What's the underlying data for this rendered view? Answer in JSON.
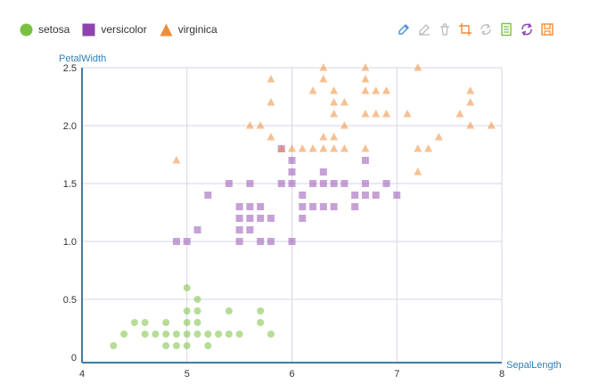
{
  "legend": {
    "items": [
      {
        "label": "setosa",
        "shape": "circle",
        "color": "#7ac143"
      },
      {
        "label": "versicolor",
        "shape": "square",
        "color": "#8e44ad"
      },
      {
        "label": "virginica",
        "shape": "triangle",
        "color": "#f08c38"
      }
    ]
  },
  "toolbox": {
    "items": [
      {
        "icon": "pencil-icon",
        "color": "#4a90d9"
      },
      {
        "icon": "eraser-icon",
        "color": "#bbbbbb"
      },
      {
        "icon": "clear-icon",
        "color": "#bbbbbb"
      },
      {
        "icon": "crop-icon",
        "color": "#f08c38"
      },
      {
        "icon": "refresh-disabled-icon",
        "color": "#bbbbbb"
      },
      {
        "icon": "data-view-icon",
        "color": "#7ac143"
      },
      {
        "icon": "restore-icon",
        "color": "#8e44ad"
      },
      {
        "icon": "save-image-icon",
        "color": "#f08c38"
      }
    ]
  },
  "chart_data": {
    "type": "scatter",
    "title": "",
    "xlabel": "SepalLength",
    "ylabel": "PetalWidth",
    "xlim": [
      4,
      8
    ],
    "ylim": [
      0,
      2.5
    ],
    "xticks": [
      4,
      5,
      6,
      7,
      8
    ],
    "yticks": [
      0,
      0.5,
      1.0,
      1.5,
      2.0,
      2.5
    ],
    "ytick_labels": [
      "0",
      "0.5",
      "1.0",
      "1.5",
      "2.0",
      "2.5"
    ],
    "grid": true,
    "legend_position": "top-left",
    "series": [
      {
        "name": "setosa",
        "color": "#7ac143",
        "symbol": "circle",
        "points": [
          [
            4.3,
            0.1
          ],
          [
            4.4,
            0.2
          ],
          [
            4.5,
            0.3
          ],
          [
            4.6,
            0.2
          ],
          [
            4.6,
            0.3
          ],
          [
            4.7,
            0.2
          ],
          [
            4.8,
            0.2
          ],
          [
            4.8,
            0.1
          ],
          [
            4.8,
            0.3
          ],
          [
            4.9,
            0.1
          ],
          [
            4.9,
            0.2
          ],
          [
            5.0,
            0.2
          ],
          [
            5.0,
            0.3
          ],
          [
            5.0,
            0.4
          ],
          [
            5.0,
            0.6
          ],
          [
            5.0,
            0.1
          ],
          [
            5.1,
            0.2
          ],
          [
            5.1,
            0.3
          ],
          [
            5.1,
            0.4
          ],
          [
            5.1,
            0.5
          ],
          [
            5.2,
            0.2
          ],
          [
            5.2,
            0.1
          ],
          [
            5.3,
            0.2
          ],
          [
            5.4,
            0.2
          ],
          [
            5.4,
            0.4
          ],
          [
            5.5,
            0.2
          ],
          [
            5.7,
            0.3
          ],
          [
            5.7,
            0.4
          ],
          [
            5.8,
            0.2
          ]
        ]
      },
      {
        "name": "versicolor",
        "color": "#8e44ad",
        "symbol": "square",
        "points": [
          [
            4.9,
            1.0
          ],
          [
            5.0,
            1.0
          ],
          [
            5.1,
            1.1
          ],
          [
            5.2,
            1.4
          ],
          [
            5.4,
            1.5
          ],
          [
            5.5,
            1.3
          ],
          [
            5.5,
            1.2
          ],
          [
            5.5,
            1.0
          ],
          [
            5.5,
            1.1
          ],
          [
            5.6,
            1.3
          ],
          [
            5.6,
            1.5
          ],
          [
            5.6,
            1.1
          ],
          [
            5.6,
            1.2
          ],
          [
            5.7,
            1.3
          ],
          [
            5.7,
            1.2
          ],
          [
            5.7,
            1.0
          ],
          [
            5.8,
            1.2
          ],
          [
            5.8,
            1.0
          ],
          [
            5.9,
            1.5
          ],
          [
            5.9,
            1.8
          ],
          [
            6.0,
            1.0
          ],
          [
            6.0,
            1.5
          ],
          [
            6.0,
            1.6
          ],
          [
            6.0,
            1.7
          ],
          [
            6.1,
            1.4
          ],
          [
            6.1,
            1.3
          ],
          [
            6.1,
            1.2
          ],
          [
            6.2,
            1.5
          ],
          [
            6.2,
            1.3
          ],
          [
            6.3,
            1.5
          ],
          [
            6.3,
            1.3
          ],
          [
            6.3,
            1.6
          ],
          [
            6.4,
            1.5
          ],
          [
            6.4,
            1.3
          ],
          [
            6.5,
            1.5
          ],
          [
            6.6,
            1.3
          ],
          [
            6.6,
            1.4
          ],
          [
            6.7,
            1.4
          ],
          [
            6.7,
            1.5
          ],
          [
            6.7,
            1.7
          ],
          [
            6.8,
            1.4
          ],
          [
            6.9,
            1.5
          ],
          [
            7.0,
            1.4
          ]
        ]
      },
      {
        "name": "virginica",
        "color": "#f08c38",
        "symbol": "triangle",
        "points": [
          [
            4.9,
            1.7
          ],
          [
            5.6,
            2.0
          ],
          [
            5.7,
            2.0
          ],
          [
            5.8,
            1.9
          ],
          [
            5.8,
            2.4
          ],
          [
            5.8,
            2.2
          ],
          [
            5.9,
            1.8
          ],
          [
            6.0,
            1.8
          ],
          [
            6.1,
            1.8
          ],
          [
            6.2,
            1.8
          ],
          [
            6.2,
            2.3
          ],
          [
            6.3,
            1.8
          ],
          [
            6.3,
            1.9
          ],
          [
            6.3,
            2.5
          ],
          [
            6.3,
            2.4
          ],
          [
            6.4,
            1.8
          ],
          [
            6.4,
            1.9
          ],
          [
            6.4,
            2.1
          ],
          [
            6.4,
            2.2
          ],
          [
            6.4,
            2.3
          ],
          [
            6.5,
            1.8
          ],
          [
            6.5,
            2.0
          ],
          [
            6.5,
            2.2
          ],
          [
            6.7,
            1.8
          ],
          [
            6.7,
            2.1
          ],
          [
            6.7,
            2.3
          ],
          [
            6.7,
            2.4
          ],
          [
            6.7,
            2.5
          ],
          [
            6.8,
            2.1
          ],
          [
            6.8,
            2.3
          ],
          [
            6.9,
            2.1
          ],
          [
            6.9,
            2.3
          ],
          [
            7.1,
            2.1
          ],
          [
            7.2,
            1.6
          ],
          [
            7.2,
            1.8
          ],
          [
            7.2,
            2.5
          ],
          [
            7.3,
            1.8
          ],
          [
            7.4,
            1.9
          ],
          [
            7.6,
            2.1
          ],
          [
            7.7,
            2.0
          ],
          [
            7.7,
            2.2
          ],
          [
            7.7,
            2.3
          ],
          [
            7.9,
            2.0
          ]
        ]
      }
    ]
  }
}
